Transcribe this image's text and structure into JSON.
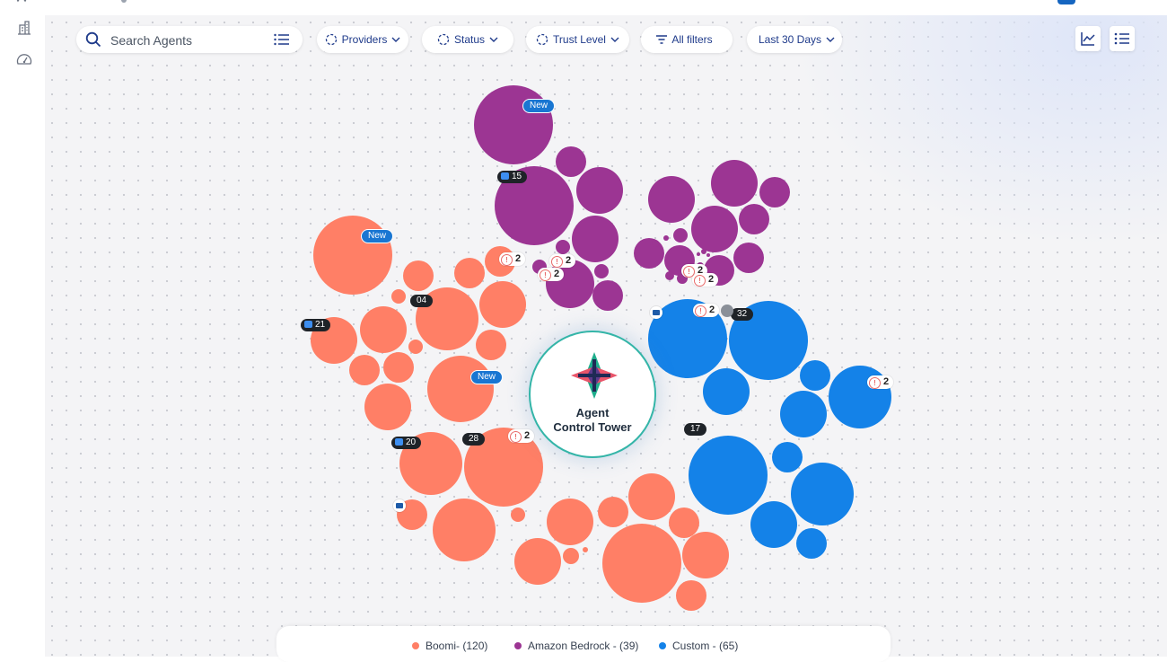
{
  "search": {
    "placeholder": "Search Agents"
  },
  "filters": [
    {
      "label": "Providers",
      "icon": "dashed-circle-icon",
      "chevron": true
    },
    {
      "label": "Status",
      "icon": "dashed-circle-icon",
      "chevron": true
    },
    {
      "label": "Trust Level",
      "icon": "dashed-circle-icon",
      "chevron": true
    },
    {
      "label": "All filters",
      "icon": "filter-icon",
      "chevron": false
    },
    {
      "label": "Last 30 Days",
      "icon": "",
      "chevron": true
    }
  ],
  "view_buttons": [
    "chart-view-icon",
    "list-view-icon"
  ],
  "center": {
    "line1": "Agent",
    "line2": "Control Tower"
  },
  "colors": {
    "boomi": "#ff7f66",
    "bedrock": "#9c3593",
    "custom": "#1482e8",
    "accent": "#1e3a8a"
  },
  "legend": [
    {
      "label": "Boomi- (120)",
      "color": "#ff7f66"
    },
    {
      "label": "Amazon Bedrock - (39)",
      "color": "#9c3593"
    },
    {
      "label": "Custom - (65)",
      "color": "#1482e8"
    }
  ],
  "badges": {
    "new_label": "New",
    "counts": [
      "04",
      "28",
      "17",
      "32"
    ],
    "agent_counts": [
      "15",
      "21",
      "20"
    ],
    "alert_value": "2"
  }
}
